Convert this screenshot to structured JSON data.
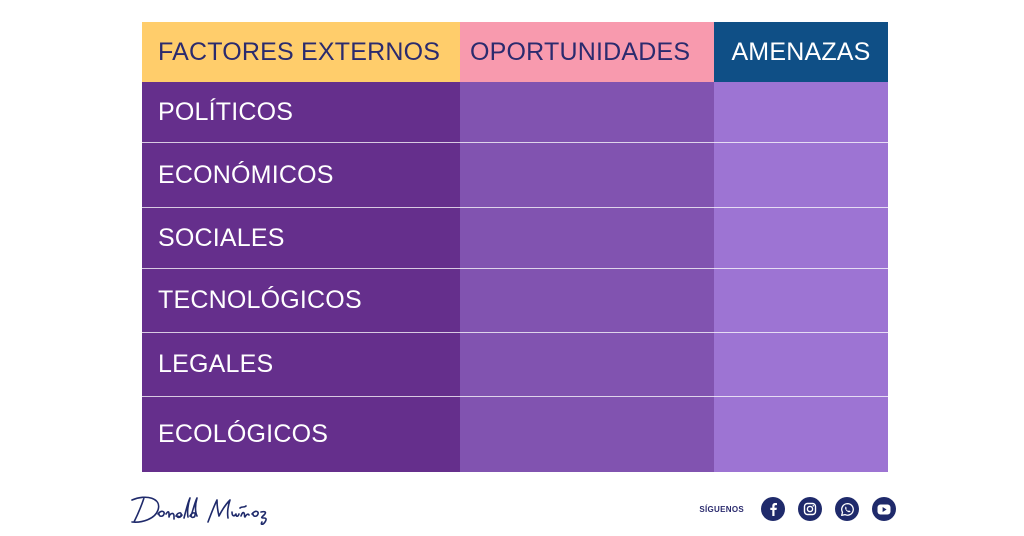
{
  "table": {
    "headers": [
      "FACTORES EXTERNOS",
      "OPORTUNIDADES",
      "AMENAZAS"
    ],
    "rows": [
      "POLÍTICOS",
      "ECONÓMICOS",
      "SOCIALES",
      "TECNOLÓGICOS",
      "LEGALES",
      "ECOLÓGICOS"
    ]
  },
  "footer": {
    "signature": "Donald Muñoz",
    "follow_label": "SÍGUENOS",
    "social_icons": [
      "facebook-icon",
      "instagram-icon",
      "whatsapp-icon",
      "youtube-icon"
    ]
  },
  "colors": {
    "header_factores": "#ffcd6b",
    "header_oportunidades": "#f89aae",
    "header_amenazas": "#0f4f86",
    "col_factores": "#652f8c",
    "col_oportunidades": "#8153b0",
    "col_amenazas": "#9d74d3",
    "footer_navy": "#1f2a6b"
  }
}
